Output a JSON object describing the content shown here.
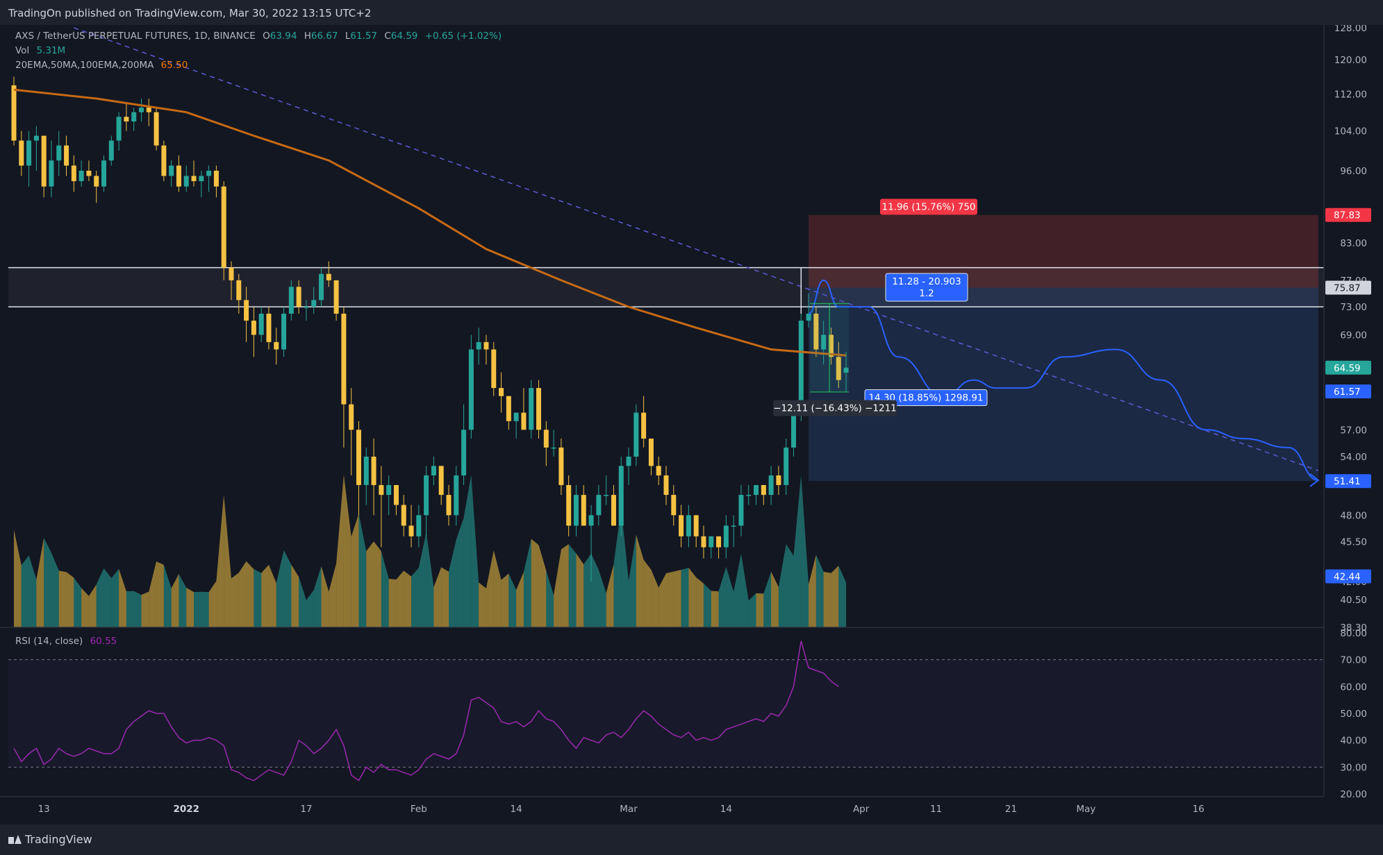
{
  "header": {
    "publish_text": "TradingOn published on TradingView.com, Mar 30, 2022 13:15 UTC+2"
  },
  "footer": {
    "brand": "TradingView"
  },
  "legend": {
    "symbol": "AXS / TetherUS PERPETUAL FUTURES, 1D, BINANCE",
    "open_label": "O",
    "open": "63.94",
    "high_label": "H",
    "high": "66.67",
    "low_label": "L",
    "low": "61.57",
    "close_label": "C",
    "close": "64.59",
    "change": "+0.65 (+1.02%)",
    "vol_label": "Vol",
    "vol": "5.31M",
    "ma_label": "20EMA,50MA,100EMA,200MA",
    "ma_value": "65.50",
    "rsi_label": "RSI (14, close)",
    "rsi_value": "60.55"
  },
  "colors": {
    "bull": "#26a69a",
    "bear": "#f5c243",
    "ma": "#c76a15",
    "rsi": "#9c27b0",
    "projection": "#2962ff",
    "trendline": "#5b5bd6",
    "stop_zone": "#4a2228",
    "target_zone": "#1f2d4a",
    "background": "#131722"
  },
  "badges": {
    "risk_label": "11.96 (15.76%) 750",
    "ratio_line1": "11.28 - 20.903",
    "ratio_line2": "1.2",
    "reward_label": "14.30 (18.85%) 1298.91",
    "measure_label": "−12.11 (−16.43%) −1211"
  },
  "price_scale": {
    "ticks": [
      "128.00",
      "120.00",
      "112.00",
      "104.00",
      "96.00",
      "83.00",
      "77.00",
      "73.00",
      "69.00",
      "57.00",
      "54.00",
      "48.00",
      "45.50",
      "42.00",
      "40.50",
      "38.30"
    ],
    "tags": [
      {
        "value": "87.83",
        "color": "#f23645"
      },
      {
        "value": "75.87",
        "color": "#d1d4dc"
      },
      {
        "value": "64.59",
        "color": "#26a69a"
      },
      {
        "value": "61.57",
        "color": "#2962ff"
      },
      {
        "value": "51.41",
        "color": "#2962ff"
      },
      {
        "value": "42.44",
        "color": "#2962ff"
      }
    ]
  },
  "rsi_scale": {
    "ticks": [
      "80.00",
      "70.00",
      "60.00",
      "50.00",
      "40.00",
      "30.00",
      "20.00"
    ]
  },
  "time_axis": {
    "ticks": [
      "13",
      "2022",
      "17",
      "Feb",
      "14",
      "Mar",
      "14",
      "Apr",
      "11",
      "21",
      "May",
      "16"
    ]
  },
  "chart_data": {
    "type": "candlestick",
    "title": "AXS / TetherUS PERPETUAL FUTURES, 1D, BINANCE",
    "y_range": [
      38.3,
      128
    ],
    "x_range": [
      "2021-12-09",
      "2022-06-01"
    ],
    "log_scale": true,
    "candles": [
      {
        "d": "2021-12-09",
        "o": 114,
        "h": 116,
        "l": 101,
        "c": 102
      },
      {
        "d": "2021-12-10",
        "o": 102,
        "h": 104,
        "l": 95,
        "c": 97
      },
      {
        "d": "2021-12-11",
        "o": 97,
        "h": 104,
        "l": 93,
        "c": 102
      },
      {
        "d": "2021-12-12",
        "o": 102,
        "h": 105,
        "l": 96,
        "c": 103
      },
      {
        "d": "2021-12-13",
        "o": 103,
        "h": 103,
        "l": 91,
        "c": 93
      },
      {
        "d": "2021-12-14",
        "o": 93,
        "h": 102,
        "l": 91,
        "c": 98
      },
      {
        "d": "2021-12-15",
        "o": 98,
        "h": 104,
        "l": 95,
        "c": 101
      },
      {
        "d": "2021-12-16",
        "o": 101,
        "h": 103,
        "l": 95,
        "c": 97
      },
      {
        "d": "2021-12-17",
        "o": 97,
        "h": 99,
        "l": 92,
        "c": 94
      },
      {
        "d": "2021-12-18",
        "o": 94,
        "h": 98,
        "l": 93,
        "c": 96
      },
      {
        "d": "2021-12-19",
        "o": 96,
        "h": 98,
        "l": 94,
        "c": 95
      },
      {
        "d": "2021-12-20",
        "o": 95,
        "h": 96,
        "l": 90,
        "c": 93
      },
      {
        "d": "2021-12-21",
        "o": 93,
        "h": 99,
        "l": 92,
        "c": 98
      },
      {
        "d": "2021-12-22",
        "o": 98,
        "h": 103,
        "l": 97,
        "c": 102
      },
      {
        "d": "2021-12-23",
        "o": 102,
        "h": 108,
        "l": 100,
        "c": 107
      },
      {
        "d": "2021-12-24",
        "o": 107,
        "h": 110,
        "l": 104,
        "c": 106
      },
      {
        "d": "2021-12-25",
        "o": 106,
        "h": 109,
        "l": 104,
        "c": 108
      },
      {
        "d": "2021-12-26",
        "o": 108,
        "h": 111,
        "l": 106,
        "c": 109
      },
      {
        "d": "2021-12-27",
        "o": 109,
        "h": 111,
        "l": 105,
        "c": 108
      },
      {
        "d": "2021-12-28",
        "o": 108,
        "h": 109,
        "l": 100,
        "c": 101
      },
      {
        "d": "2021-12-29",
        "o": 101,
        "h": 102,
        "l": 94,
        "c": 95
      },
      {
        "d": "2021-12-30",
        "o": 95,
        "h": 98,
        "l": 93,
        "c": 97
      },
      {
        "d": "2021-12-31",
        "o": 97,
        "h": 99,
        "l": 92,
        "c": 93
      },
      {
        "d": "2022-01-01",
        "o": 93,
        "h": 97,
        "l": 92,
        "c": 95
      },
      {
        "d": "2022-01-02",
        "o": 95,
        "h": 98,
        "l": 93,
        "c": 94
      },
      {
        "d": "2022-01-03",
        "o": 94,
        "h": 96,
        "l": 91,
        "c": 95
      },
      {
        "d": "2022-01-04",
        "o": 95,
        "h": 97,
        "l": 92,
        "c": 96
      },
      {
        "d": "2022-01-05",
        "o": 96,
        "h": 97,
        "l": 91,
        "c": 93
      },
      {
        "d": "2022-01-06",
        "o": 93,
        "h": 94,
        "l": 77,
        "c": 79
      },
      {
        "d": "2022-01-07",
        "o": 79,
        "h": 80,
        "l": 74,
        "c": 77
      },
      {
        "d": "2022-01-08",
        "o": 77,
        "h": 78,
        "l": 72,
        "c": 74
      },
      {
        "d": "2022-01-09",
        "o": 74,
        "h": 76,
        "l": 68,
        "c": 71
      },
      {
        "d": "2022-01-10",
        "o": 71,
        "h": 73,
        "l": 66,
        "c": 69
      },
      {
        "d": "2022-01-11",
        "o": 69,
        "h": 73,
        "l": 68,
        "c": 72
      },
      {
        "d": "2022-01-12",
        "o": 72,
        "h": 73,
        "l": 67,
        "c": 68
      },
      {
        "d": "2022-01-13",
        "o": 68,
        "h": 70,
        "l": 65,
        "c": 67
      },
      {
        "d": "2022-01-14",
        "o": 67,
        "h": 73,
        "l": 66,
        "c": 72
      },
      {
        "d": "2022-01-15",
        "o": 72,
        "h": 77,
        "l": 71,
        "c": 76
      },
      {
        "d": "2022-01-16",
        "o": 76,
        "h": 77,
        "l": 72,
        "c": 73
      },
      {
        "d": "2022-01-17",
        "o": 73,
        "h": 74,
        "l": 71,
        "c": 73
      },
      {
        "d": "2022-01-18",
        "o": 73,
        "h": 76,
        "l": 72,
        "c": 74
      },
      {
        "d": "2022-01-19",
        "o": 74,
        "h": 79,
        "l": 73,
        "c": 78
      },
      {
        "d": "2022-01-20",
        "o": 78,
        "h": 80,
        "l": 76,
        "c": 77
      },
      {
        "d": "2022-01-21",
        "o": 77,
        "h": 77,
        "l": 71,
        "c": 72
      },
      {
        "d": "2022-01-22",
        "o": 72,
        "h": 73,
        "l": 55,
        "c": 60
      },
      {
        "d": "2022-01-23",
        "o": 60,
        "h": 62,
        "l": 52,
        "c": 57
      },
      {
        "d": "2022-01-24",
        "o": 57,
        "h": 58,
        "l": 48,
        "c": 51
      },
      {
        "d": "2022-01-25",
        "o": 51,
        "h": 55,
        "l": 49,
        "c": 54
      },
      {
        "d": "2022-01-26",
        "o": 54,
        "h": 56,
        "l": 48,
        "c": 51
      },
      {
        "d": "2022-01-27",
        "o": 51,
        "h": 53,
        "l": 45,
        "c": 50
      },
      {
        "d": "2022-01-28",
        "o": 50,
        "h": 52,
        "l": 48,
        "c": 51
      },
      {
        "d": "2022-01-29",
        "o": 51,
        "h": 51,
        "l": 48,
        "c": 49
      },
      {
        "d": "2022-01-30",
        "o": 49,
        "h": 50,
        "l": 46,
        "c": 47
      },
      {
        "d": "2022-01-31",
        "o": 47,
        "h": 49,
        "l": 45,
        "c": 46
      },
      {
        "d": "2022-02-01",
        "o": 46,
        "h": 49,
        "l": 45,
        "c": 48
      },
      {
        "d": "2022-02-02",
        "o": 48,
        "h": 53,
        "l": 46,
        "c": 52
      },
      {
        "d": "2022-02-03",
        "o": 52,
        "h": 54,
        "l": 51,
        "c": 53
      },
      {
        "d": "2022-02-04",
        "o": 53,
        "h": 53,
        "l": 49,
        "c": 50
      },
      {
        "d": "2022-02-05",
        "o": 50,
        "h": 51,
        "l": 47,
        "c": 48
      },
      {
        "d": "2022-02-06",
        "o": 48,
        "h": 53,
        "l": 47,
        "c": 52
      },
      {
        "d": "2022-02-07",
        "o": 52,
        "h": 60,
        "l": 51,
        "c": 57
      },
      {
        "d": "2022-02-08",
        "o": 57,
        "h": 69,
        "l": 56,
        "c": 67
      },
      {
        "d": "2022-02-09",
        "o": 67,
        "h": 70,
        "l": 65,
        "c": 68
      },
      {
        "d": "2022-02-10",
        "o": 68,
        "h": 69,
        "l": 65,
        "c": 67
      },
      {
        "d": "2022-02-11",
        "o": 67,
        "h": 68,
        "l": 61,
        "c": 62
      },
      {
        "d": "2022-02-12",
        "o": 62,
        "h": 64,
        "l": 59,
        "c": 61
      },
      {
        "d": "2022-02-13",
        "o": 61,
        "h": 61,
        "l": 57,
        "c": 58
      },
      {
        "d": "2022-02-14",
        "o": 58,
        "h": 59,
        "l": 56,
        "c": 59
      },
      {
        "d": "2022-02-15",
        "o": 59,
        "h": 62,
        "l": 57,
        "c": 57
      },
      {
        "d": "2022-02-16",
        "o": 57,
        "h": 63,
        "l": 56,
        "c": 62
      },
      {
        "d": "2022-02-17",
        "o": 62,
        "h": 63,
        "l": 56,
        "c": 57
      },
      {
        "d": "2022-02-18",
        "o": 57,
        "h": 58,
        "l": 53,
        "c": 55
      },
      {
        "d": "2022-02-19",
        "o": 55,
        "h": 57,
        "l": 54,
        "c": 55
      },
      {
        "d": "2022-02-20",
        "o": 55,
        "h": 56,
        "l": 50,
        "c": 51
      },
      {
        "d": "2022-02-21",
        "o": 51,
        "h": 52,
        "l": 46,
        "c": 47
      },
      {
        "d": "2022-02-22",
        "o": 47,
        "h": 51,
        "l": 46,
        "c": 50
      },
      {
        "d": "2022-02-23",
        "o": 50,
        "h": 51,
        "l": 47,
        "c": 47
      },
      {
        "d": "2022-02-24",
        "o": 47,
        "h": 49,
        "l": 42,
        "c": 48
      },
      {
        "d": "2022-02-25",
        "o": 48,
        "h": 51,
        "l": 47,
        "c": 50
      },
      {
        "d": "2022-02-26",
        "o": 50,
        "h": 52,
        "l": 49,
        "c": 50
      },
      {
        "d": "2022-02-27",
        "o": 50,
        "h": 51,
        "l": 47,
        "c": 47
      },
      {
        "d": "2022-02-28",
        "o": 47,
        "h": 54,
        "l": 46,
        "c": 53
      },
      {
        "d": "2022-03-01",
        "o": 53,
        "h": 55,
        "l": 51,
        "c": 54
      },
      {
        "d": "2022-03-02",
        "o": 54,
        "h": 60,
        "l": 53,
        "c": 59
      },
      {
        "d": "2022-03-03",
        "o": 59,
        "h": 61,
        "l": 55,
        "c": 56
      },
      {
        "d": "2022-03-04",
        "o": 56,
        "h": 56,
        "l": 52,
        "c": 53
      },
      {
        "d": "2022-03-05",
        "o": 53,
        "h": 54,
        "l": 51,
        "c": 52
      },
      {
        "d": "2022-03-06",
        "o": 52,
        "h": 53,
        "l": 49,
        "c": 50
      },
      {
        "d": "2022-03-07",
        "o": 50,
        "h": 51,
        "l": 47,
        "c": 48
      },
      {
        "d": "2022-03-08",
        "o": 48,
        "h": 49,
        "l": 45,
        "c": 46
      },
      {
        "d": "2022-03-09",
        "o": 46,
        "h": 49,
        "l": 45,
        "c": 48
      },
      {
        "d": "2022-03-10",
        "o": 48,
        "h": 48,
        "l": 45,
        "c": 46
      },
      {
        "d": "2022-03-11",
        "o": 46,
        "h": 47,
        "l": 44,
        "c": 45
      },
      {
        "d": "2022-03-12",
        "o": 45,
        "h": 46,
        "l": 44,
        "c": 46
      },
      {
        "d": "2022-03-13",
        "o": 46,
        "h": 46,
        "l": 44,
        "c": 45
      },
      {
        "d": "2022-03-14",
        "o": 45,
        "h": 48,
        "l": 44,
        "c": 47
      },
      {
        "d": "2022-03-15",
        "o": 47,
        "h": 48,
        "l": 45,
        "c": 47
      },
      {
        "d": "2022-03-16",
        "o": 47,
        "h": 51,
        "l": 46,
        "c": 50
      },
      {
        "d": "2022-03-17",
        "o": 50,
        "h": 51,
        "l": 49,
        "c": 50
      },
      {
        "d": "2022-03-18",
        "o": 50,
        "h": 51,
        "l": 49,
        "c": 51
      },
      {
        "d": "2022-03-19",
        "o": 51,
        "h": 51,
        "l": 49,
        "c": 50
      },
      {
        "d": "2022-03-20",
        "o": 50,
        "h": 53,
        "l": 49,
        "c": 52
      },
      {
        "d": "2022-03-21",
        "o": 52,
        "h": 53,
        "l": 50,
        "c": 51
      },
      {
        "d": "2022-03-22",
        "o": 51,
        "h": 56,
        "l": 50,
        "c": 55
      },
      {
        "d": "2022-03-23",
        "o": 55,
        "h": 59,
        "l": 54,
        "c": 59
      },
      {
        "d": "2022-03-24",
        "o": 59,
        "h": 72,
        "l": 58,
        "c": 71
      },
      {
        "d": "2022-03-25",
        "o": 71,
        "h": 75,
        "l": 70,
        "c": 72
      },
      {
        "d": "2022-03-26",
        "o": 72,
        "h": 73,
        "l": 66,
        "c": 67
      },
      {
        "d": "2022-03-27",
        "o": 67,
        "h": 71,
        "l": 65,
        "c": 69
      },
      {
        "d": "2022-03-28",
        "o": 69,
        "h": 70,
        "l": 65,
        "c": 66
      },
      {
        "d": "2022-03-29",
        "o": 66,
        "h": 68,
        "l": 62,
        "c": 63
      },
      {
        "d": "2022-03-30",
        "o": 63.94,
        "h": 66.67,
        "l": 61.57,
        "c": 64.59
      }
    ],
    "ma_200": [
      [
        "2021-12-09",
        113
      ],
      [
        "2021-12-20",
        111
      ],
      [
        "2022-01-01",
        108
      ],
      [
        "2022-01-10",
        103
      ],
      [
        "2022-01-20",
        98
      ],
      [
        "2022-02-01",
        89
      ],
      [
        "2022-02-10",
        82
      ],
      [
        "2022-02-20",
        77
      ],
      [
        "2022-03-01",
        73
      ],
      [
        "2022-03-10",
        70
      ],
      [
        "2022-03-20",
        67
      ],
      [
        "2022-03-30",
        66.2
      ]
    ],
    "rsi": [
      37,
      32,
      35,
      37,
      31,
      33,
      37,
      35,
      34,
      35,
      37,
      36,
      35,
      35,
      37,
      44,
      47,
      49,
      51,
      50,
      50,
      45,
      41,
      39,
      40,
      40,
      41,
      40,
      38,
      29,
      28,
      26,
      25,
      27,
      29,
      28,
      27,
      32,
      40,
      38,
      35,
      37,
      40,
      44,
      38,
      27,
      25,
      30,
      28,
      31,
      29,
      29,
      28,
      27,
      29,
      33,
      35,
      34,
      33,
      35,
      42,
      55,
      56,
      54,
      52,
      47,
      46,
      47,
      45,
      47,
      51,
      48,
      47,
      44,
      40,
      37,
      41,
      40,
      39,
      42,
      43,
      41,
      44,
      48,
      51,
      49,
      46,
      44,
      42,
      41,
      43,
      40,
      41,
      40,
      41,
      44,
      45,
      46,
      47,
      48,
      47,
      50,
      49,
      53,
      60,
      77,
      67,
      66,
      65,
      62,
      60
    ]
  },
  "drawings": {
    "resistance_upper": 79,
    "resistance_lower": 73,
    "stop_zone": {
      "from": "2022-03-25",
      "to": "2022-06-01",
      "top": 87.83,
      "bottom": 75.87
    },
    "target_zone": {
      "from": "2022-03-25",
      "to": "2022-06-01",
      "top": 75.87,
      "bottom": 51.41
    },
    "target_zone_2": {
      "top": 75.87,
      "bottom": 42.44
    },
    "projection_path": [
      [
        "2022-03-25",
        72
      ],
      [
        "2022-03-27",
        77
      ],
      [
        "2022-03-29",
        73
      ],
      [
        "2022-04-02",
        73
      ],
      [
        "2022-04-06",
        66
      ],
      [
        "2022-04-12",
        61
      ],
      [
        "2022-04-16",
        63
      ],
      [
        "2022-04-19",
        62
      ],
      [
        "2022-04-23",
        62
      ],
      [
        "2022-04-28",
        66
      ],
      [
        "2022-05-05",
        67
      ],
      [
        "2022-05-11",
        63
      ],
      [
        "2022-05-17",
        57
      ],
      [
        "2022-05-22",
        56
      ],
      [
        "2022-05-28",
        55
      ],
      [
        "2022-06-01",
        51.5
      ]
    ]
  }
}
